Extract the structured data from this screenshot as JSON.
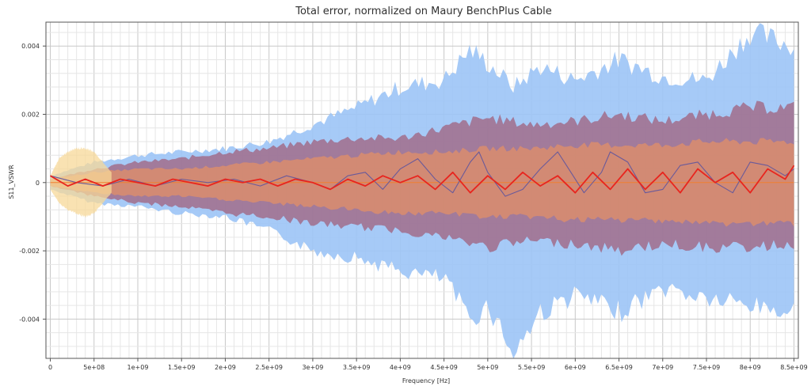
{
  "chart_data": {
    "type": "area",
    "title": "Total error, normalized on Maury BenchPlus Cable",
    "xlabel": "Frequency [Hz]",
    "ylabel": "S11_VSWR",
    "xlim": [
      -50000000.0,
      8550000000.0
    ],
    "ylim": [
      -0.00515,
      0.0047
    ],
    "x_ticks": [
      0,
      500000000.0,
      1000000000.0,
      1500000000.0,
      2000000000.0,
      2500000000.0,
      3000000000.0,
      3500000000.0,
      4000000000.0,
      4500000000.0,
      5000000000.0,
      5500000000.0,
      6000000000.0,
      6500000000.0,
      7000000000.0,
      7500000000.0,
      8000000000.0,
      8500000000.0
    ],
    "x_tick_labels": [
      "0",
      "5e+08",
      "1e+09",
      "1.5e+09",
      "2e+09",
      "2.5e+09",
      "3e+09",
      "3.5e+09",
      "4e+09",
      "4.5e+09",
      "5e+09",
      "5.5e+09",
      "6e+09",
      "6.5e+09",
      "7e+09",
      "7.5e+09",
      "8e+09",
      "8.5e+09"
    ],
    "y_ticks": [
      -0.004,
      -0.002,
      0,
      0.002,
      0.004
    ],
    "y_tick_labels": [
      "-0.004",
      "-0.002",
      "0",
      "0.002",
      "0.004"
    ],
    "grid": true,
    "colors": {
      "blue_band": "#9cc4f6",
      "purple_band": "#a0607c",
      "orange_band": "#f2945a",
      "yellow_band": "#f7d898",
      "red_line": "#e8251e",
      "purple_line": "#6a5a9a",
      "orange_line": "#f08030"
    },
    "bands": [
      {
        "color_key": "blue_band",
        "opacity": 0.9,
        "x": [
          0,
          500000000.0,
          1000000000.0,
          1500000000.0,
          2000000000.0,
          2500000000.0,
          3000000000.0,
          3500000000.0,
          4000000000.0,
          4500000000.0,
          4800000000.0,
          5000000000.0,
          5300000000.0,
          5600000000.0,
          6000000000.0,
          6500000000.0,
          7000000000.0,
          7500000000.0,
          8000000000.0,
          8500000000.0
        ],
        "upper": [
          0.0002,
          0.0006,
          0.0008,
          0.0009,
          0.001,
          0.0012,
          0.0017,
          0.0022,
          0.0028,
          0.003,
          0.0039,
          0.0035,
          0.0028,
          0.0034,
          0.003,
          0.0036,
          0.0031,
          0.003,
          0.0044,
          0.004
        ],
        "lower": [
          -0.0002,
          -0.0006,
          -0.0007,
          -0.0009,
          -0.001,
          -0.0014,
          -0.002,
          -0.0022,
          -0.0026,
          -0.0028,
          -0.004,
          -0.0036,
          -0.005,
          -0.0038,
          -0.0033,
          -0.0038,
          -0.0031,
          -0.0034,
          -0.0036,
          -0.0038
        ]
      },
      {
        "color_key": "purple_band",
        "opacity": 0.75,
        "x": [
          0,
          500000000.0,
          1000000000.0,
          1500000000.0,
          2000000000.0,
          2500000000.0,
          3000000000.0,
          3500000000.0,
          4000000000.0,
          4500000000.0,
          5000000000.0,
          5500000000.0,
          6000000000.0,
          6500000000.0,
          7000000000.0,
          7500000000.0,
          8000000000.0,
          8500000000.0
        ],
        "upper": [
          0.0001,
          0.0004,
          0.0006,
          0.0007,
          0.0009,
          0.001,
          0.0012,
          0.0013,
          0.0013,
          0.0016,
          0.0019,
          0.0017,
          0.0018,
          0.002,
          0.0018,
          0.002,
          0.0022,
          0.0022
        ],
        "lower": [
          -0.0001,
          -0.0004,
          -0.0006,
          -0.0007,
          -0.0009,
          -0.001,
          -0.0012,
          -0.0013,
          -0.0014,
          -0.0016,
          -0.0019,
          -0.0017,
          -0.0018,
          -0.002,
          -0.0018,
          -0.0019,
          -0.0019,
          -0.0018
        ]
      },
      {
        "color_key": "orange_band",
        "opacity": 0.6,
        "x": [
          0,
          500000000.0,
          1000000000.0,
          1500000000.0,
          2000000000.0,
          2500000000.0,
          3000000000.0,
          3500000000.0,
          4000000000.0,
          4500000000.0,
          5000000000.0,
          5500000000.0,
          6000000000.0,
          6500000000.0,
          7000000000.0,
          7500000000.0,
          8000000000.0,
          8500000000.0
        ],
        "upper": [
          0.0001,
          0.0003,
          0.0004,
          0.0004,
          0.0005,
          0.0006,
          0.0007,
          0.0008,
          0.0009,
          0.0009,
          0.001,
          0.001,
          0.0011,
          0.0011,
          0.0011,
          0.0012,
          0.0012,
          0.0012
        ],
        "lower": [
          -0.0001,
          -0.0003,
          -0.0004,
          -0.0004,
          -0.0005,
          -0.0006,
          -0.0007,
          -0.0008,
          -0.0009,
          -0.0009,
          -0.001,
          -0.001,
          -0.0011,
          -0.0011,
          -0.0011,
          -0.0012,
          -0.0012,
          -0.0012
        ]
      },
      {
        "color_key": "yellow_band",
        "opacity": 0.75,
        "x": [
          0,
          100000000.0,
          200000000.0,
          300000000.0,
          400000000.0,
          500000000.0,
          600000000.0,
          700000000.0
        ],
        "upper": [
          0.0002,
          0.0007,
          0.0009,
          0.001,
          0.001,
          0.0009,
          0.0006,
          0.0003
        ],
        "lower": [
          -0.0002,
          -0.0006,
          -0.0008,
          -0.0009,
          -0.001,
          -0.0009,
          -0.0006,
          -0.0003
        ]
      }
    ],
    "series": [
      {
        "color_key": "orange_line",
        "width": 1,
        "x": [
          0,
          8500000000.0
        ],
        "y": [
          0,
          0
        ]
      },
      {
        "color_key": "purple_line",
        "width": 1.1,
        "x": [
          0,
          300000000.0,
          600000000.0,
          900000000.0,
          1200000000.0,
          1500000000.0,
          1800000000.0,
          2100000000.0,
          2400000000.0,
          2700000000.0,
          3000000000.0,
          3200000000.0,
          3400000000.0,
          3600000000.0,
          3800000000.0,
          4000000000.0,
          4200000000.0,
          4400000000.0,
          4600000000.0,
          4800000000.0,
          4900000000.0,
          5000000000.0,
          5200000000.0,
          5400000000.0,
          5600000000.0,
          5800000000.0,
          5900000000.0,
          6100000000.0,
          6300000000.0,
          6400000000.0,
          6600000000.0,
          6800000000.0,
          7000000000.0,
          7200000000.0,
          7400000000.0,
          7600000000.0,
          7800000000.0,
          8000000000.0,
          8200000000.0,
          8400000000.0,
          8500000000.0
        ],
        "y": [
          0.0002,
          0.0,
          -0.0001,
          0.0001,
          -0.0001,
          0.0001,
          0.0,
          0.0001,
          -0.0001,
          0.0002,
          0.0,
          -0.0002,
          0.0002,
          0.0003,
          -0.0002,
          0.0004,
          0.0007,
          0.0001,
          -0.0003,
          0.0006,
          0.0009,
          0.0003,
          -0.0004,
          -0.0002,
          0.0004,
          0.0009,
          0.0005,
          -0.0003,
          0.0003,
          0.0009,
          0.0006,
          -0.0003,
          -0.0002,
          0.0005,
          0.0006,
          0.0,
          -0.0003,
          0.0006,
          0.0005,
          0.0002,
          0.0004
        ]
      },
      {
        "color_key": "red_line",
        "width": 1.8,
        "x": [
          0,
          200000000.0,
          400000000.0,
          600000000.0,
          800000000.0,
          1000000000.0,
          1200000000.0,
          1400000000.0,
          1600000000.0,
          1800000000.0,
          2000000000.0,
          2200000000.0,
          2400000000.0,
          2600000000.0,
          2800000000.0,
          3000000000.0,
          3200000000.0,
          3400000000.0,
          3600000000.0,
          3800000000.0,
          4000000000.0,
          4200000000.0,
          4400000000.0,
          4600000000.0,
          4800000000.0,
          5000000000.0,
          5200000000.0,
          5400000000.0,
          5600000000.0,
          5800000000.0,
          6000000000.0,
          6200000000.0,
          6400000000.0,
          6600000000.0,
          6800000000.0,
          7000000000.0,
          7200000000.0,
          7400000000.0,
          7600000000.0,
          7800000000.0,
          8000000000.0,
          8200000000.0,
          8400000000.0,
          8500000000.0
        ],
        "y": [
          0.0002,
          -0.0001,
          0.0001,
          -0.0001,
          0.0001,
          0.0,
          -0.0001,
          0.0001,
          0.0,
          -0.0001,
          0.0001,
          0.0,
          0.0001,
          -0.0001,
          0.0001,
          0.0,
          -0.0002,
          0.0001,
          -0.0001,
          0.0002,
          0.0,
          0.0002,
          -0.0002,
          0.0003,
          -0.0003,
          0.0002,
          -0.0002,
          0.0003,
          -0.0001,
          0.0002,
          -0.0003,
          0.0003,
          -0.0002,
          0.0004,
          -0.0002,
          0.0003,
          -0.0003,
          0.0004,
          0.0,
          0.0003,
          -0.0003,
          0.0004,
          0.0001,
          0.0005
        ]
      }
    ]
  }
}
